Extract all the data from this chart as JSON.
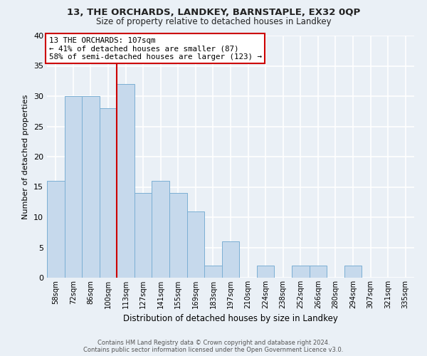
{
  "title1": "13, THE ORCHARDS, LANDKEY, BARNSTAPLE, EX32 0QP",
  "title2": "Size of property relative to detached houses in Landkey",
  "xlabel": "Distribution of detached houses by size in Landkey",
  "ylabel": "Number of detached properties",
  "categories": [
    "58sqm",
    "72sqm",
    "86sqm",
    "100sqm",
    "113sqm",
    "127sqm",
    "141sqm",
    "155sqm",
    "169sqm",
    "183sqm",
    "197sqm",
    "210sqm",
    "224sqm",
    "238sqm",
    "252sqm",
    "266sqm",
    "280sqm",
    "294sqm",
    "307sqm",
    "321sqm",
    "335sqm"
  ],
  "values": [
    16,
    30,
    30,
    28,
    32,
    14,
    16,
    14,
    11,
    2,
    6,
    0,
    2,
    0,
    2,
    2,
    0,
    2,
    0,
    0,
    0
  ],
  "bar_color": "#c6d9ec",
  "bar_edge_color": "#7bafd4",
  "red_line_x": 3.5,
  "ylim": [
    0,
    40
  ],
  "yticks": [
    0,
    5,
    10,
    15,
    20,
    25,
    30,
    35,
    40
  ],
  "annotation_title": "13 THE ORCHARDS: 107sqm",
  "annotation_line2": "← 41% of detached houses are smaller (87)",
  "annotation_line3": "58% of semi-detached houses are larger (123) →",
  "annotation_box_color": "#ffffff",
  "annotation_border_color": "#cc0000",
  "footer_line1": "Contains HM Land Registry data © Crown copyright and database right 2024.",
  "footer_line2": "Contains public sector information licensed under the Open Government Licence v3.0.",
  "bg_color": "#eaf0f6",
  "grid_color": "#ffffff"
}
